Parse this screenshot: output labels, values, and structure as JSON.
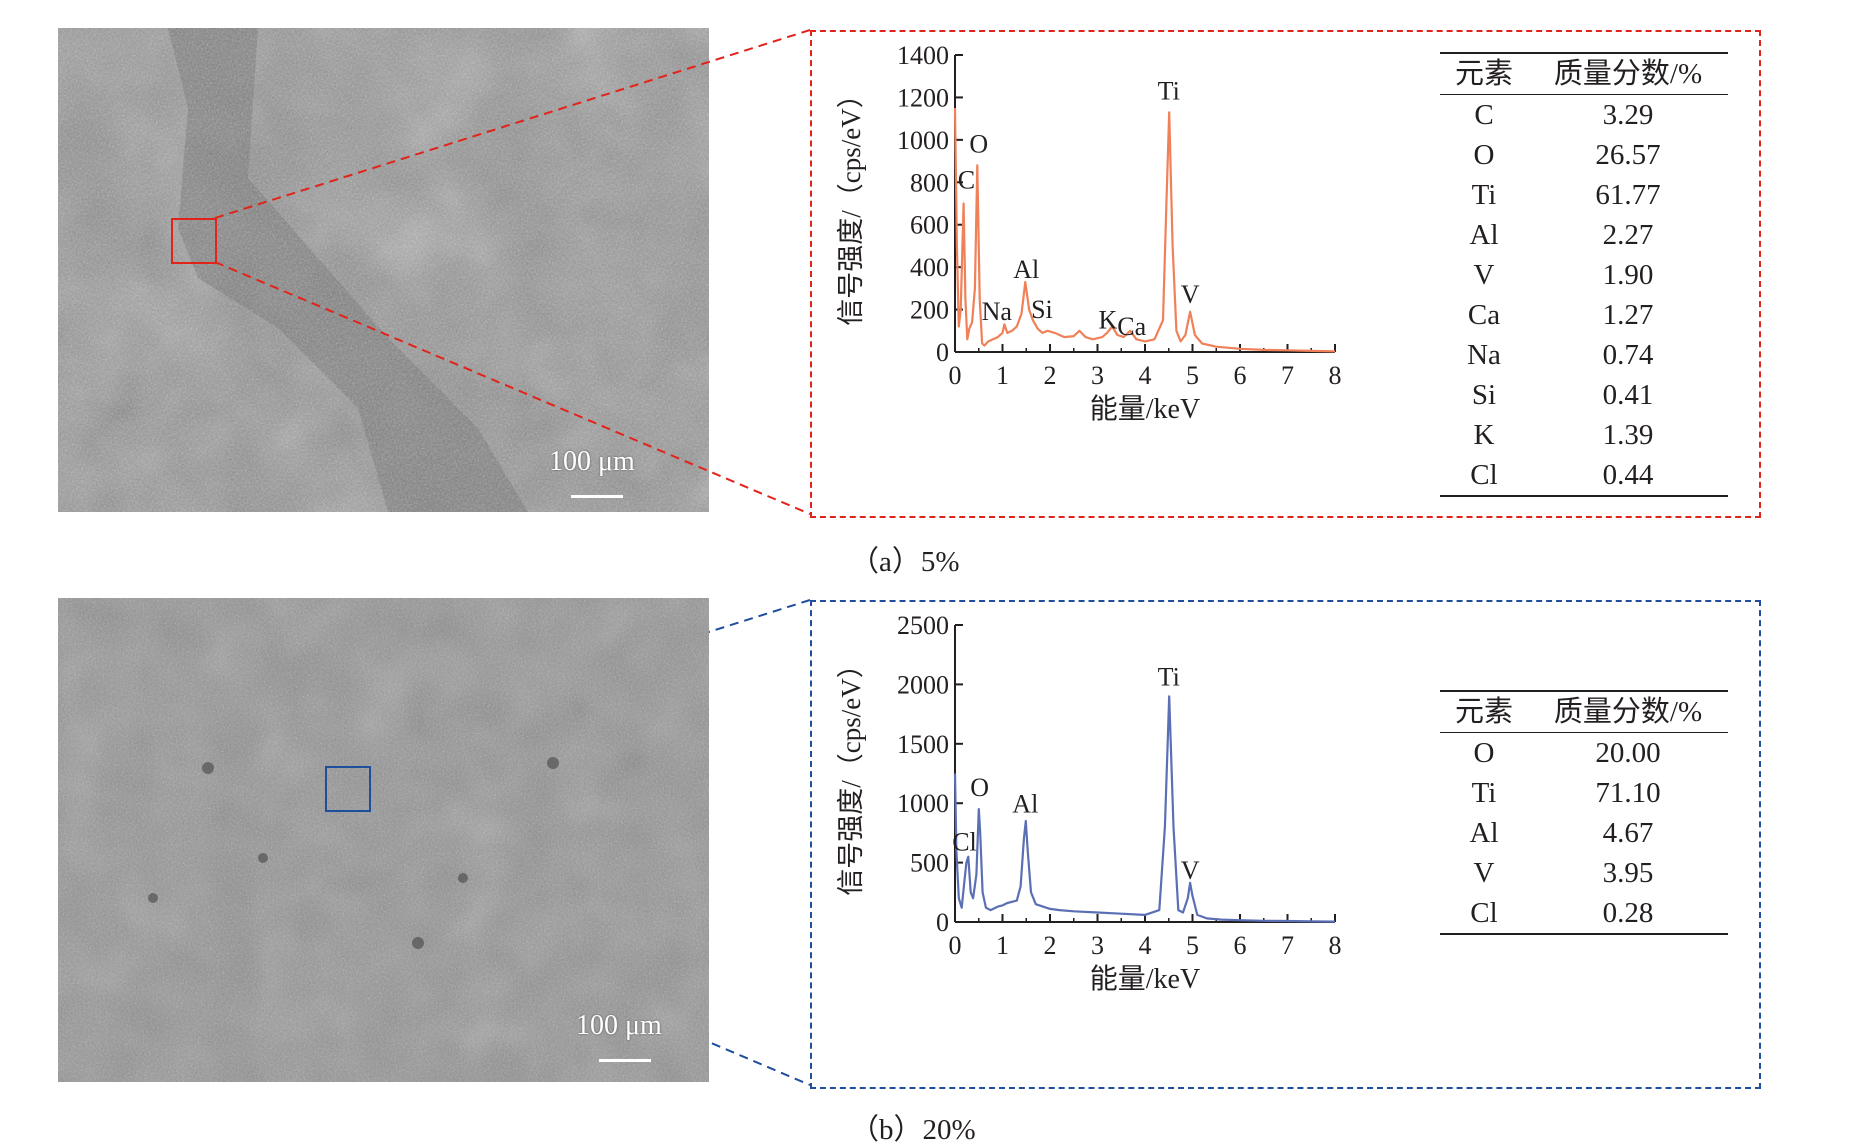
{
  "panels": [
    {
      "id": "a",
      "caption": "（a）5%",
      "scale_bar_label": "100 μm",
      "accent_color": "#e2231a",
      "spectrum_color": "#f08058",
      "table": {
        "headers": [
          "元素",
          "质量分数/%"
        ],
        "rows": [
          [
            "C",
            "3.29"
          ],
          [
            "O",
            "26.57"
          ],
          [
            "Ti",
            "61.77"
          ],
          [
            "Al",
            "2.27"
          ],
          [
            "V",
            "1.90"
          ],
          [
            "Ca",
            "1.27"
          ],
          [
            "Na",
            "0.74"
          ],
          [
            "Si",
            "0.41"
          ],
          [
            "K",
            "1.39"
          ],
          [
            "Cl",
            "0.44"
          ]
        ]
      }
    },
    {
      "id": "b",
      "caption": "（b）20%",
      "scale_bar_label": "100 μm",
      "accent_color": "#1f4e9c",
      "spectrum_color": "#5b6fb5",
      "table": {
        "headers": [
          "元素",
          "质量分数/%"
        ],
        "rows": [
          [
            "O",
            "20.00"
          ],
          [
            "Ti",
            "71.10"
          ],
          [
            "Al",
            "4.67"
          ],
          [
            "V",
            "3.95"
          ],
          [
            "Cl",
            "0.28"
          ]
        ]
      }
    }
  ],
  "chart_data": [
    {
      "type": "line",
      "xlabel": "能量/keV",
      "ylabel": "信号强度/（cps/eV）",
      "xlim": [
        0,
        8
      ],
      "ylim": [
        0,
        1400
      ],
      "xticks": [
        0,
        1,
        2,
        3,
        4,
        5,
        6,
        7,
        8
      ],
      "yticks": [
        0,
        200,
        400,
        600,
        800,
        1000,
        1200,
        1400
      ],
      "x": [
        0.0,
        0.04,
        0.08,
        0.12,
        0.18,
        0.22,
        0.26,
        0.3,
        0.36,
        0.42,
        0.47,
        0.52,
        0.57,
        0.62,
        0.7,
        0.8,
        0.9,
        1.0,
        1.04,
        1.1,
        1.2,
        1.3,
        1.4,
        1.48,
        1.56,
        1.64,
        1.74,
        1.84,
        1.95,
        2.1,
        2.3,
        2.5,
        2.62,
        2.75,
        2.9,
        3.1,
        3.2,
        3.31,
        3.42,
        3.55,
        3.69,
        3.82,
        4.0,
        4.2,
        4.38,
        4.45,
        4.51,
        4.58,
        4.66,
        4.75,
        4.85,
        4.95,
        5.05,
        5.2,
        5.5,
        6.0,
        6.5,
        7.0,
        7.5,
        8.0
      ],
      "y": [
        1150,
        500,
        120,
        200,
        700,
        250,
        60,
        110,
        140,
        300,
        880,
        250,
        40,
        30,
        50,
        60,
        70,
        90,
        130,
        90,
        100,
        120,
        180,
        330,
        200,
        150,
        110,
        90,
        100,
        90,
        70,
        75,
        100,
        70,
        60,
        70,
        90,
        120,
        80,
        70,
        100,
        60,
        50,
        60,
        150,
        700,
        1130,
        500,
        100,
        50,
        80,
        190,
        80,
        40,
        25,
        15,
        10,
        8,
        5,
        3
      ],
      "peak_labels": [
        {
          "label": "C",
          "x": 0.24,
          "y": 770
        },
        {
          "label": "O",
          "x": 0.5,
          "y": 940
        },
        {
          "label": "Na",
          "x": 0.88,
          "y": 150
        },
        {
          "label": "Al",
          "x": 1.5,
          "y": 350
        },
        {
          "label": "Si",
          "x": 1.83,
          "y": 160
        },
        {
          "label": "K",
          "x": 3.22,
          "y": 110
        },
        {
          "label": "Ca",
          "x": 3.72,
          "y": 80
        },
        {
          "label": "Ti",
          "x": 4.5,
          "y": 1190
        },
        {
          "label": "V",
          "x": 4.95,
          "y": 230
        }
      ]
    },
    {
      "type": "line",
      "xlabel": "能量/keV",
      "ylabel": "信号强度/（cps/eV）",
      "xlim": [
        0,
        8
      ],
      "ylim": [
        0,
        2500
      ],
      "xticks": [
        0,
        1,
        2,
        3,
        4,
        5,
        6,
        7,
        8
      ],
      "yticks": [
        0,
        500,
        1000,
        1500,
        2000,
        2500
      ],
      "x": [
        0.0,
        0.03,
        0.08,
        0.14,
        0.2,
        0.24,
        0.28,
        0.33,
        0.38,
        0.45,
        0.5,
        0.53,
        0.58,
        0.65,
        0.75,
        0.9,
        1.0,
        1.1,
        1.2,
        1.3,
        1.38,
        1.45,
        1.49,
        1.53,
        1.6,
        1.7,
        1.85,
        2.0,
        2.2,
        2.5,
        3.0,
        3.5,
        4.0,
        4.3,
        4.42,
        4.51,
        4.6,
        4.7,
        4.8,
        4.9,
        4.95,
        5.0,
        5.1,
        5.3,
        5.6,
        6.0,
        6.5,
        7.0,
        7.5,
        8.0
      ],
      "y": [
        1250,
        600,
        200,
        120,
        350,
        500,
        550,
        250,
        200,
        400,
        950,
        750,
        250,
        120,
        100,
        130,
        140,
        160,
        170,
        180,
        300,
        700,
        850,
        600,
        250,
        150,
        130,
        110,
        100,
        90,
        80,
        70,
        60,
        100,
        800,
        1900,
        800,
        100,
        80,
        200,
        330,
        220,
        60,
        30,
        20,
        15,
        10,
        8,
        5,
        3
      ],
      "peak_labels": [
        {
          "label": "Cl",
          "x": 0.2,
          "y": 600
        },
        {
          "label": "O",
          "x": 0.52,
          "y": 1060
        },
        {
          "label": "Al",
          "x": 1.48,
          "y": 920
        },
        {
          "label": "Ti",
          "x": 4.5,
          "y": 1990
        },
        {
          "label": "V",
          "x": 4.95,
          "y": 360
        }
      ]
    }
  ]
}
